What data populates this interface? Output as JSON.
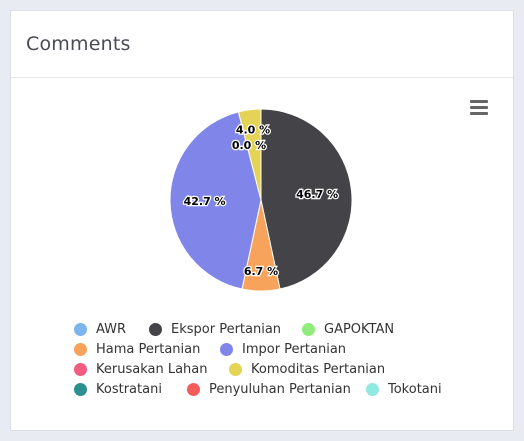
{
  "card": {
    "title": "Comments"
  },
  "menu": {
    "icon": "hamburger-menu-icon"
  },
  "chart_data": {
    "type": "pie",
    "title": "",
    "slices": [
      {
        "name": "Ekspor Pertanian",
        "value": 46.7,
        "label": "46.7 %",
        "color": "#434348"
      },
      {
        "name": "Hama Pertanian",
        "value": 6.7,
        "label": "6.7 %",
        "color": "#f7a35c"
      },
      {
        "name": "Impor Pertanian",
        "value": 42.7,
        "label": "42.7 %",
        "color": "#8085e9"
      },
      {
        "name": "Komoditas Pertanian",
        "value": 4.0,
        "label": "4.0 %",
        "color": "#e4d354"
      },
      {
        "name": "AWR",
        "value": 0.0,
        "label": "0.0 %",
        "color": "#7cb5ec"
      },
      {
        "name": "GAPOKTAN",
        "value": 0.0,
        "label": "0.0 %",
        "color": "#90ed7d"
      },
      {
        "name": "Kerusakan Lahan",
        "value": 0.0,
        "label": "0.0 %",
        "color": "#f15c80"
      },
      {
        "name": "Kostratani",
        "value": 0.0,
        "label": "0.0 %",
        "color": "#2b908f"
      },
      {
        "name": "Penyuluhan Pertanian",
        "value": 0.0,
        "label": "0.0 %",
        "color": "#f45b5b"
      },
      {
        "name": "Tokotani",
        "value": 0.0,
        "label": "0.0 %",
        "color": "#91e8e1"
      }
    ],
    "legend": [
      {
        "name": "AWR",
        "color": "#7cb5ec"
      },
      {
        "name": "Ekspor Pertanian",
        "color": "#434348"
      },
      {
        "name": "GAPOKTAN",
        "color": "#90ed7d"
      },
      {
        "name": "Hama Pertanian",
        "color": "#f7a35c"
      },
      {
        "name": "Impor Pertanian",
        "color": "#8085e9"
      },
      {
        "name": "Kerusakan Lahan",
        "color": "#f15c80"
      },
      {
        "name": "Komoditas Pertanian",
        "color": "#e4d354"
      },
      {
        "name": "Kostratani",
        "color": "#2b908f"
      },
      {
        "name": "Penyuluhan Pertanian",
        "color": "#f45b5b"
      },
      {
        "name": "Tokotani",
        "color": "#91e8e1"
      }
    ],
    "legend_placement": "bottom"
  }
}
